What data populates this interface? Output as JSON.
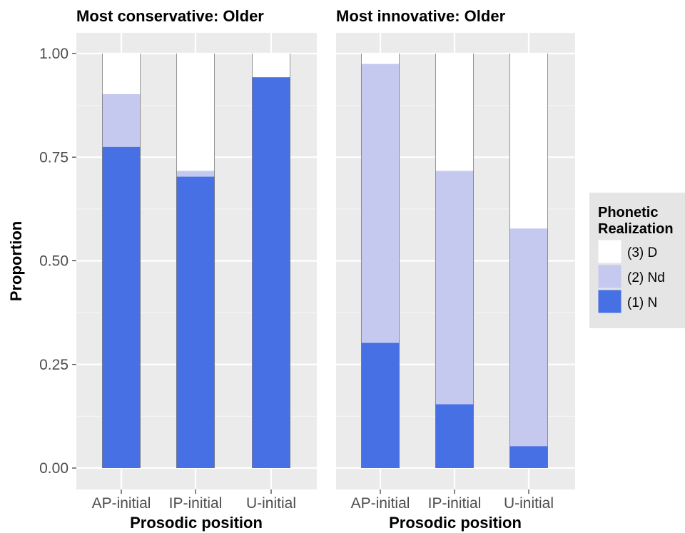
{
  "chart_data": {
    "type": "bar",
    "stacked": true,
    "ylabel": "Proportion",
    "xlabel": "Prosodic position",
    "ylim": [
      0,
      1
    ],
    "yticks": [
      "0.00",
      "0.25",
      "0.50",
      "0.75",
      "1.00"
    ],
    "ytick_values": [
      0,
      0.25,
      0.5,
      0.75,
      1
    ],
    "grid": true,
    "legend": {
      "title_lines": [
        "Phonetic",
        "Realization"
      ],
      "placement": "right",
      "entries": [
        {
          "label": "(3) D",
          "color": "#ffffff"
        },
        {
          "label": "(2) Nd",
          "color": "#c5c9f0"
        },
        {
          "label": "(1) N",
          "color": "#4670e3"
        }
      ]
    },
    "panels": [
      {
        "title": "Most conservative: Older",
        "categories": [
          "AP-initial",
          "IP-initial",
          "U-initial"
        ],
        "series": [
          {
            "name": "(1) N",
            "color": "#4670e3",
            "values": [
              0.775,
              0.703,
              0.943
            ]
          },
          {
            "name": "(2) Nd",
            "color": "#c5c9f0",
            "values": [
              0.127,
              0.014,
              0.0
            ]
          },
          {
            "name": "(3) D",
            "color": "#ffffff",
            "values": [
              0.098,
              0.283,
              0.057
            ]
          }
        ]
      },
      {
        "title": "Most innovative: Older",
        "categories": [
          "AP-initial",
          "IP-initial",
          "U-initial"
        ],
        "series": [
          {
            "name": "(1) N",
            "color": "#4670e3",
            "values": [
              0.302,
              0.154,
              0.053
            ]
          },
          {
            "name": "(2) Nd",
            "color": "#c5c9f0",
            "values": [
              0.673,
              0.563,
              0.525
            ]
          },
          {
            "name": "(3) D",
            "color": "#ffffff",
            "values": [
              0.025,
              0.283,
              0.422
            ]
          }
        ]
      }
    ]
  },
  "colors": {
    "panel_background": "#ebebeb",
    "grid_major": "#ffffff",
    "grid_minor": "#f5f5f5",
    "legend_background": "#e5e5e5"
  }
}
